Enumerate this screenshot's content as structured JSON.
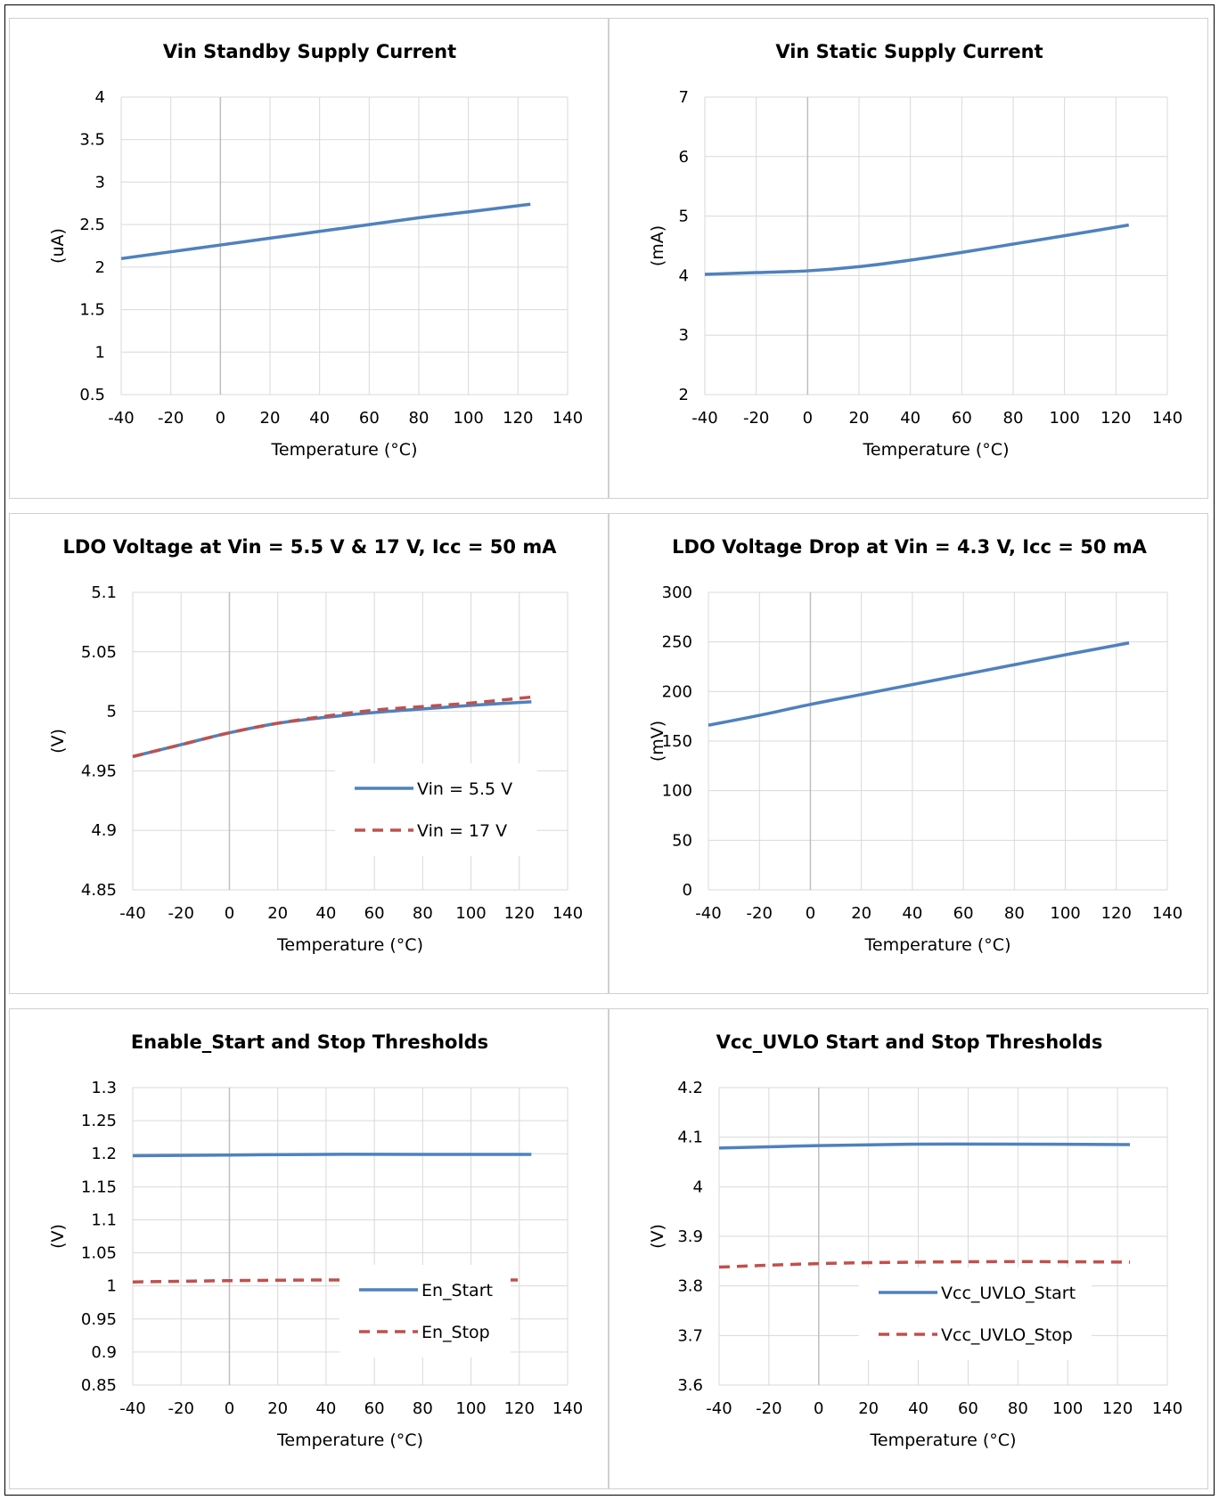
{
  "colors": {
    "blue": "#4f81bd",
    "red": "#c0504d",
    "grid": "#d9d9d9",
    "zero": "#bfbfbf"
  },
  "chart_data": [
    {
      "type": "line",
      "title": "Vin Standby Supply Current",
      "xlabel": "Temperature (°C)",
      "ylabel": "(uA)",
      "xlim": [
        -40,
        140
      ],
      "xticks": [
        -40,
        -20,
        0,
        20,
        40,
        60,
        80,
        100,
        120,
        140
      ],
      "ylim": [
        0.5,
        4
      ],
      "yticks": [
        0.5,
        1,
        1.5,
        2,
        2.5,
        3,
        3.5,
        4
      ],
      "ytick_labels": [
        "0.5",
        "1",
        "1.5",
        "2",
        "2.5",
        "3",
        "3.5",
        "4"
      ],
      "grid": true,
      "legend": null,
      "series": [
        {
          "color": "#4f81bd",
          "dash": false,
          "x": [
            -40,
            -20,
            0,
            20,
            40,
            60,
            80,
            100,
            125
          ],
          "y": [
            2.1,
            2.18,
            2.26,
            2.34,
            2.42,
            2.5,
            2.58,
            2.65,
            2.74
          ]
        }
      ]
    },
    {
      "type": "line",
      "title": "Vin Static Supply Current",
      "xlabel": "Temperature (°C)",
      "ylabel": "(mA)",
      "xlim": [
        -40,
        140
      ],
      "xticks": [
        -40,
        -20,
        0,
        20,
        40,
        60,
        80,
        100,
        120,
        140
      ],
      "ylim": [
        2,
        7
      ],
      "yticks": [
        2,
        3,
        4,
        5,
        6,
        7
      ],
      "ytick_labels": [
        "2",
        "3",
        "4",
        "5",
        "6",
        "7"
      ],
      "grid": true,
      "legend": null,
      "series": [
        {
          "color": "#4f81bd",
          "dash": false,
          "x": [
            -40,
            -20,
            0,
            20,
            40,
            60,
            80,
            100,
            125
          ],
          "y": [
            4.02,
            4.05,
            4.08,
            4.15,
            4.26,
            4.39,
            4.53,
            4.67,
            4.85
          ]
        }
      ]
    },
    {
      "type": "line",
      "title": "LDO Voltage at Vin = 5.5 V & 17 V, Icc = 50 mA",
      "xlabel": "Temperature (°C)",
      "ylabel": "(V)",
      "xlim": [
        -40,
        140
      ],
      "xticks": [
        -40,
        -20,
        0,
        20,
        40,
        60,
        80,
        100,
        120,
        140
      ],
      "ylim": [
        4.85,
        5.1
      ],
      "yticks": [
        4.85,
        4.9,
        4.95,
        5,
        5.05,
        5.1
      ],
      "ytick_labels": [
        "4.85",
        "4.9",
        "4.95",
        "5",
        "5.05",
        "5.1"
      ],
      "grid": true,
      "legend": {
        "position": "bottom-right"
      },
      "series": [
        {
          "name": "Vin = 5.5 V",
          "color": "#4f81bd",
          "dash": false,
          "x": [
            -40,
            -20,
            0,
            20,
            40,
            60,
            80,
            100,
            125
          ],
          "y": [
            4.962,
            4.972,
            4.982,
            4.99,
            4.995,
            4.999,
            5.002,
            5.005,
            5.008
          ]
        },
        {
          "name": "Vin = 17 V",
          "color": "#c0504d",
          "dash": true,
          "x": [
            -40,
            -20,
            0,
            20,
            40,
            60,
            80,
            100,
            125
          ],
          "y": [
            4.962,
            4.972,
            4.982,
            4.99,
            4.996,
            5.001,
            5.004,
            5.007,
            5.012
          ]
        }
      ]
    },
    {
      "type": "line",
      "title": "LDO Voltage Drop at Vin = 4.3 V, Icc = 50 mA",
      "xlabel": "Temperature (°C)",
      "ylabel": "(mV)",
      "xlim": [
        -40,
        140
      ],
      "xticks": [
        -40,
        -20,
        0,
        20,
        40,
        60,
        80,
        100,
        120,
        140
      ],
      "ylim": [
        0,
        300
      ],
      "yticks": [
        0,
        50,
        100,
        150,
        200,
        250,
        300
      ],
      "ytick_labels": [
        "0",
        "50",
        "100",
        "150",
        "200",
        "250",
        "300"
      ],
      "grid": true,
      "legend": null,
      "series": [
        {
          "color": "#4f81bd",
          "dash": false,
          "x": [
            -40,
            -20,
            0,
            20,
            40,
            60,
            80,
            100,
            125
          ],
          "y": [
            166,
            176,
            187,
            197,
            207,
            217,
            227,
            237,
            249
          ]
        }
      ]
    },
    {
      "type": "line",
      "title": "Enable_Start and Stop Thresholds",
      "xlabel": "Temperature (°C)",
      "ylabel": "(V)",
      "xlim": [
        -40,
        140
      ],
      "xticks": [
        -40,
        -20,
        0,
        20,
        40,
        60,
        80,
        100,
        120,
        140
      ],
      "ylim": [
        0.85,
        1.3
      ],
      "yticks": [
        0.85,
        0.9,
        0.95,
        1,
        1.05,
        1.1,
        1.15,
        1.2,
        1.25,
        1.3
      ],
      "ytick_labels": [
        "0.85",
        "0.9",
        "0.95",
        "1",
        "1.05",
        "1.1",
        "1.15",
        "1.2",
        "1.25",
        "1.3"
      ],
      "grid": true,
      "legend": {
        "position": "bottom-right"
      },
      "series": [
        {
          "name": "En_Start",
          "color": "#4f81bd",
          "dash": false,
          "x": [
            -40,
            0,
            40,
            80,
            125
          ],
          "y": [
            1.197,
            1.198,
            1.199,
            1.199,
            1.199
          ]
        },
        {
          "name": "En_Stop",
          "color": "#c0504d",
          "dash": true,
          "x": [
            -40,
            0,
            40,
            80,
            120
          ],
          "y": [
            1.006,
            1.008,
            1.009,
            1.009,
            1.009
          ]
        }
      ]
    },
    {
      "type": "line",
      "title": "Vcc_UVLO Start and Stop Thresholds",
      "xlabel": "Temperature (°C)",
      "ylabel": "(V)",
      "xlim": [
        -40,
        140
      ],
      "xticks": [
        -40,
        -20,
        0,
        20,
        40,
        60,
        80,
        100,
        120,
        140
      ],
      "ylim": [
        3.6,
        4.2
      ],
      "yticks": [
        3.6,
        3.7,
        3.8,
        3.9,
        4,
        4.1,
        4.2
      ],
      "ytick_labels": [
        "3.6",
        "3.7",
        "3.8",
        "3.9",
        "4",
        "4.1",
        "4.2"
      ],
      "grid": true,
      "legend": {
        "position": "bottom-right"
      },
      "series": [
        {
          "name": "Vcc_UVLO_Start",
          "color": "#4f81bd",
          "dash": false,
          "x": [
            -40,
            0,
            40,
            80,
            125
          ],
          "y": [
            4.078,
            4.083,
            4.086,
            4.086,
            4.085
          ]
        },
        {
          "name": "Vcc_UVLO_Stop",
          "color": "#c0504d",
          "dash": true,
          "x": [
            -40,
            0,
            40,
            80,
            125
          ],
          "y": [
            3.838,
            3.845,
            3.848,
            3.849,
            3.848
          ]
        }
      ]
    }
  ]
}
